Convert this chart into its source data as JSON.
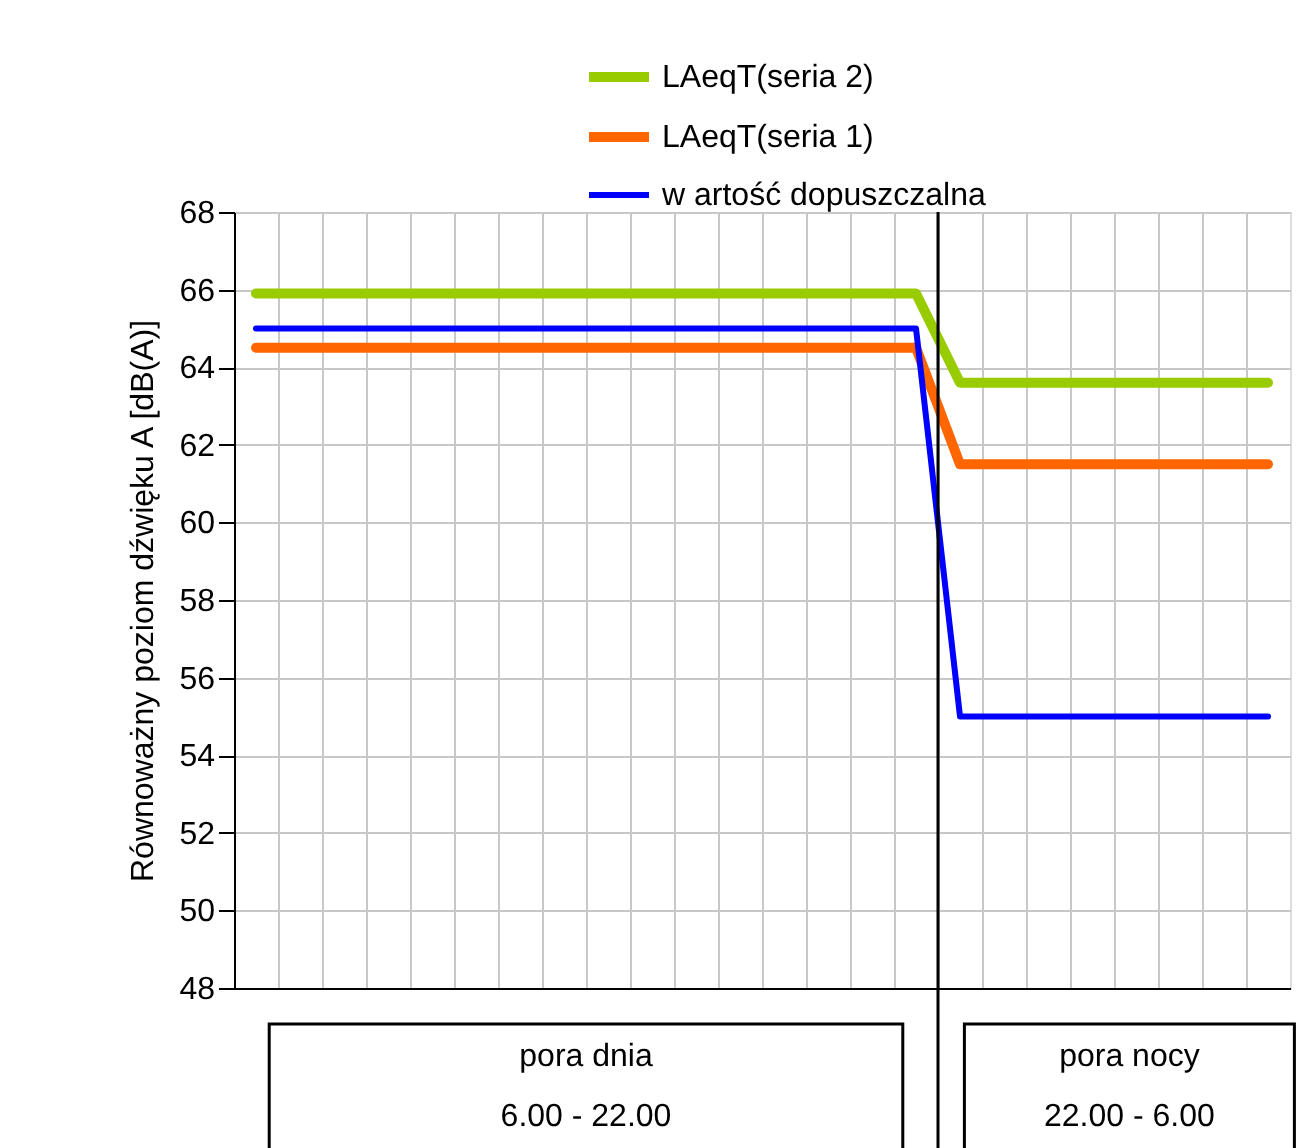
{
  "chart_data": {
    "type": "line",
    "ylabel": "Równoważny poziom dźwięku A [dB(A)]",
    "categories": [
      null,
      null,
      null,
      null,
      null,
      null,
      null,
      null,
      null,
      null,
      null,
      null,
      null,
      null,
      null,
      null,
      null,
      null,
      null,
      null,
      null,
      null,
      null,
      null
    ],
    "series": [
      {
        "name": "LAeqT(seria 2)",
        "color": "#99cc00",
        "values": [
          65.9,
          65.9,
          65.9,
          65.9,
          65.9,
          65.9,
          65.9,
          65.9,
          65.9,
          65.9,
          65.9,
          65.9,
          65.9,
          65.9,
          65.9,
          65.9,
          63.6,
          63.6,
          63.6,
          63.6,
          63.6,
          63.6,
          63.6,
          63.6
        ]
      },
      {
        "name": "LAeqT(seria 1)",
        "color": "#ff6600",
        "values": [
          64.5,
          64.5,
          64.5,
          64.5,
          64.5,
          64.5,
          64.5,
          64.5,
          64.5,
          64.5,
          64.5,
          64.5,
          64.5,
          64.5,
          64.5,
          64.5,
          61.5,
          61.5,
          61.5,
          61.5,
          61.5,
          61.5,
          61.5,
          61.5
        ]
      },
      {
        "name": "w artość dopuszczalna",
        "color": "#0000ff",
        "values": [
          65,
          65,
          65,
          65,
          65,
          65,
          65,
          65,
          65,
          65,
          65,
          65,
          65,
          65,
          65,
          65,
          55,
          55,
          55,
          55,
          55,
          55,
          55,
          55
        ]
      }
    ],
    "ylim": [
      48,
      68
    ],
    "yticks": [
      48,
      50,
      52,
      54,
      56,
      58,
      60,
      62,
      64,
      66,
      68
    ],
    "annotations": [
      "pora dnia\n6.00 - 22.00",
      "pora nocy\n22.00 - 6.00"
    ],
    "grid": true,
    "legend": "top",
    "tick_labels": "y",
    "marker": "none",
    "line_style": "solid"
  }
}
